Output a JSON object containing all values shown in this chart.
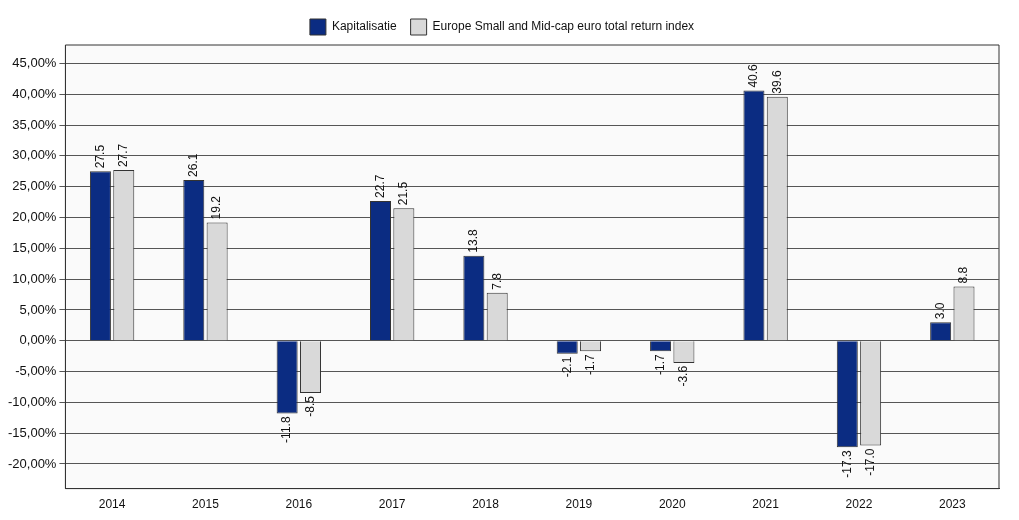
{
  "chart_data": {
    "type": "bar",
    "categories": [
      "2014",
      "2015",
      "2016",
      "2017",
      "2018",
      "2019",
      "2020",
      "2021",
      "2022",
      "2023"
    ],
    "series": [
      {
        "name": "Kapitalisatie",
        "color": "#0b2c82",
        "values": [
          27.5,
          26.1,
          -11.8,
          22.7,
          13.8,
          -2.1,
          -1.7,
          40.6,
          -17.3,
          3.0
        ],
        "value_labels": [
          "27.5",
          "26.1",
          "-11.8",
          "22.7",
          "13.8",
          "-2.1",
          "-1.7",
          "40.6",
          "-17.3",
          "3.0"
        ]
      },
      {
        "name": "Europe Small and Mid-cap euro total return index",
        "color": "#d9d9d9",
        "values": [
          27.7,
          19.2,
          -8.5,
          21.5,
          7.8,
          -1.7,
          -3.6,
          39.6,
          -17.0,
          8.8
        ],
        "value_labels": [
          "27.7",
          "19.2",
          "-8.5",
          "21.5",
          "7.8",
          "-1.7",
          "-3.6",
          "39.6",
          "-17.0",
          "8.8"
        ]
      }
    ],
    "ylim": [
      -24,
      48
    ],
    "yticks": [
      {
        "value": -20,
        "label": "-20,00%"
      },
      {
        "value": -15,
        "label": "-15,00%"
      },
      {
        "value": -10,
        "label": "-10,00%"
      },
      {
        "value": -5,
        "label": "-5,00%"
      },
      {
        "value": 0,
        "label": "0,00%"
      },
      {
        "value": 5,
        "label": "5,00%"
      },
      {
        "value": 10,
        "label": "10,00%"
      },
      {
        "value": 15,
        "label": "15,00%"
      },
      {
        "value": 20,
        "label": "20,00%"
      },
      {
        "value": 25,
        "label": "25,00%"
      },
      {
        "value": 30,
        "label": "30,00%"
      },
      {
        "value": 35,
        "label": "35,00%"
      },
      {
        "value": 40,
        "label": "40,00%"
      },
      {
        "value": 45,
        "label": "45,00%"
      }
    ],
    "grid": "y",
    "legend": "top"
  }
}
